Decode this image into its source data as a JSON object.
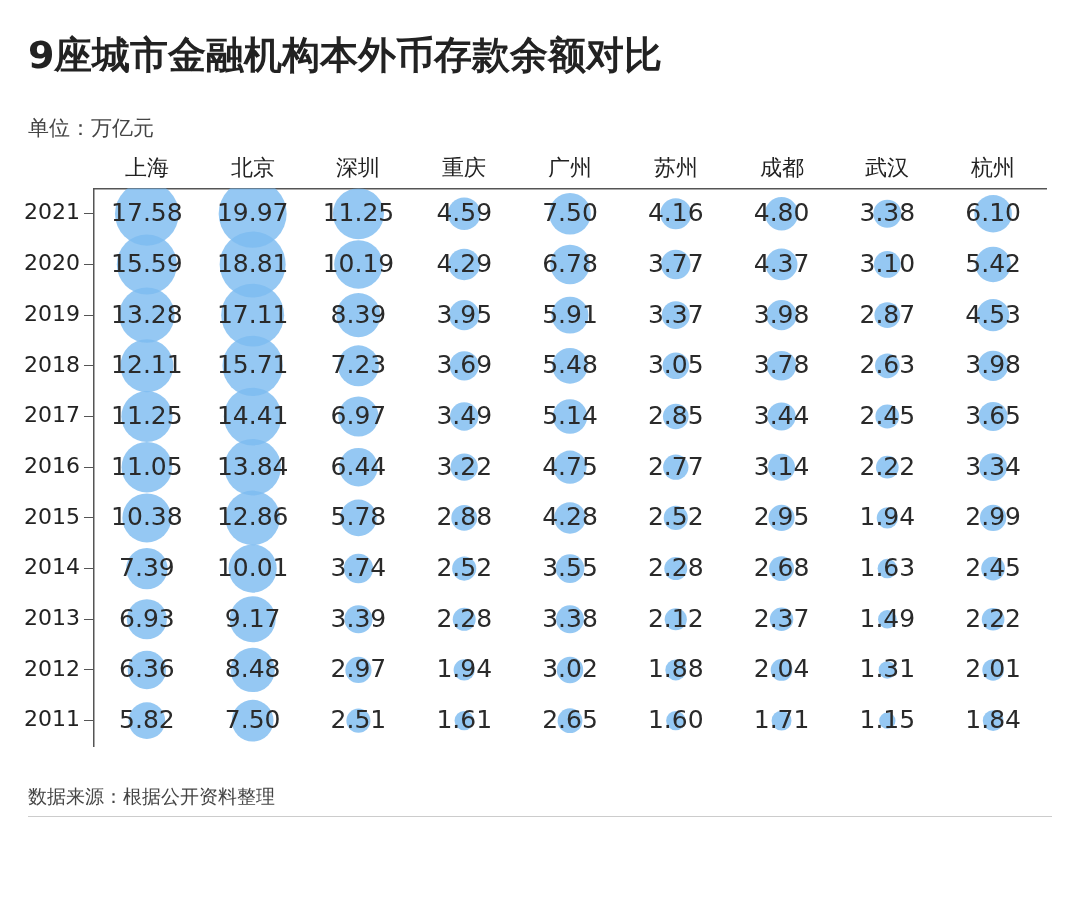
{
  "chart_data": {
    "type": "bubble",
    "title": "9座城市金融机构本外币存款余额对比",
    "subtitle": "单位：万亿元",
    "categories": [
      "上海",
      "北京",
      "深圳",
      "重庆",
      "广州",
      "苏州",
      "成都",
      "武汉",
      "杭州"
    ],
    "ylim": [
      2010.5,
      2021.5
    ],
    "yticks": [
      2011,
      2012,
      2013,
      2014,
      2015,
      2016,
      2017,
      2018,
      2019,
      2020,
      2021
    ],
    "series": [
      {
        "color": "#7dbcf0",
        "values": [
          2021,
          2021,
          2021,
          2021,
          2021,
          2021,
          2021,
          2021,
          2021
        ],
        "sizes": [
          17.58,
          19.97,
          11.25,
          4.59,
          7.5,
          4.16,
          4.8,
          3.38,
          6.1
        ],
        "value_labels": [
          "17.58",
          "19.97",
          "11.25",
          "4.59",
          "7.50",
          "4.16",
          "4.80",
          "3.38",
          "6.10"
        ]
      },
      {
        "color": "#7dbcf0",
        "values": [
          2020,
          2020,
          2020,
          2020,
          2020,
          2020,
          2020,
          2020,
          2020
        ],
        "sizes": [
          15.59,
          18.81,
          10.19,
          4.29,
          6.78,
          3.77,
          4.37,
          3.1,
          5.42
        ],
        "value_labels": [
          "15.59",
          "18.81",
          "10.19",
          "4.29",
          "6.78",
          "3.77",
          "4.37",
          "3.10",
          "5.42"
        ]
      },
      {
        "color": "#7dbcf0",
        "values": [
          2019,
          2019,
          2019,
          2019,
          2019,
          2019,
          2019,
          2019,
          2019
        ],
        "sizes": [
          13.28,
          17.11,
          8.39,
          3.95,
          5.91,
          3.37,
          3.98,
          2.87,
          4.53
        ],
        "value_labels": [
          "13.28",
          "17.11",
          "8.39",
          "3.95",
          "5.91",
          "3.37",
          "3.98",
          "2.87",
          "4.53"
        ]
      },
      {
        "color": "#7dbcf0",
        "values": [
          2018,
          2018,
          2018,
          2018,
          2018,
          2018,
          2018,
          2018,
          2018
        ],
        "sizes": [
          12.11,
          15.71,
          7.23,
          3.69,
          5.48,
          3.05,
          3.78,
          2.63,
          3.98
        ],
        "value_labels": [
          "12.11",
          "15.71",
          "7.23",
          "3.69",
          "5.48",
          "3.05",
          "3.78",
          "2.63",
          "3.98"
        ]
      },
      {
        "color": "#7dbcf0",
        "values": [
          2017,
          2017,
          2017,
          2017,
          2017,
          2017,
          2017,
          2017,
          2017
        ],
        "sizes": [
          11.25,
          14.41,
          6.97,
          3.49,
          5.14,
          2.85,
          3.44,
          2.45,
          3.65
        ],
        "value_labels": [
          "11.25",
          "14.41",
          "6.97",
          "3.49",
          "5.14",
          "2.85",
          "3.44",
          "2.45",
          "3.65"
        ]
      },
      {
        "color": "#7dbcf0",
        "values": [
          2016,
          2016,
          2016,
          2016,
          2016,
          2016,
          2016,
          2016,
          2016
        ],
        "sizes": [
          11.05,
          13.84,
          6.44,
          3.22,
          4.75,
          2.77,
          3.14,
          2.22,
          3.34
        ],
        "value_labels": [
          "11.05",
          "13.84",
          "6.44",
          "3.22",
          "4.75",
          "2.77",
          "3.14",
          "2.22",
          "3.34"
        ]
      },
      {
        "color": "#7dbcf0",
        "values": [
          2015,
          2015,
          2015,
          2015,
          2015,
          2015,
          2015,
          2015,
          2015
        ],
        "sizes": [
          10.38,
          12.86,
          5.78,
          2.88,
          4.28,
          2.52,
          2.95,
          1.94,
          2.99
        ],
        "value_labels": [
          "10.38",
          "12.86",
          "5.78",
          "2.88",
          "4.28",
          "2.52",
          "2.95",
          "1.94",
          "2.99"
        ]
      },
      {
        "color": "#7dbcf0",
        "values": [
          2014,
          2014,
          2014,
          2014,
          2014,
          2014,
          2014,
          2014,
          2014
        ],
        "sizes": [
          7.39,
          10.01,
          3.74,
          2.52,
          3.55,
          2.28,
          2.68,
          1.63,
          2.45
        ],
        "value_labels": [
          "7.39",
          "10.01",
          "3.74",
          "2.52",
          "3.55",
          "2.28",
          "2.68",
          "1.63",
          "2.45"
        ]
      },
      {
        "color": "#7dbcf0",
        "values": [
          2013,
          2013,
          2013,
          2013,
          2013,
          2013,
          2013,
          2013,
          2013
        ],
        "sizes": [
          6.93,
          9.17,
          3.39,
          2.28,
          3.38,
          2.12,
          2.37,
          1.49,
          2.22
        ],
        "value_labels": [
          "6.93",
          "9.17",
          "3.39",
          "2.28",
          "3.38",
          "2.12",
          "2.37",
          "1.49",
          "2.22"
        ]
      },
      {
        "color": "#7dbcf0",
        "values": [
          2012,
          2012,
          2012,
          2012,
          2012,
          2012,
          2012,
          2012,
          2012
        ],
        "sizes": [
          6.36,
          8.48,
          2.97,
          1.94,
          3.02,
          1.88,
          2.04,
          1.31,
          2.01
        ],
        "value_labels": [
          "6.36",
          "8.48",
          "2.97",
          "1.94",
          "3.02",
          "1.88",
          "2.04",
          "1.31",
          "2.01"
        ]
      },
      {
        "color": "#7dbcf0",
        "values": [
          2011,
          2011,
          2011,
          2011,
          2011,
          2011,
          2011,
          2011,
          2011
        ],
        "sizes": [
          5.82,
          7.5,
          2.51,
          1.61,
          2.65,
          1.6,
          1.71,
          1.15,
          1.84
        ],
        "value_labels": [
          "5.82",
          "7.50",
          "2.51",
          "1.61",
          "2.65",
          "1.60",
          "1.71",
          "1.15",
          "1.84"
        ]
      }
    ],
    "grid": false,
    "annotations": [
      "数据来源：根据公开资料整理"
    ]
  }
}
